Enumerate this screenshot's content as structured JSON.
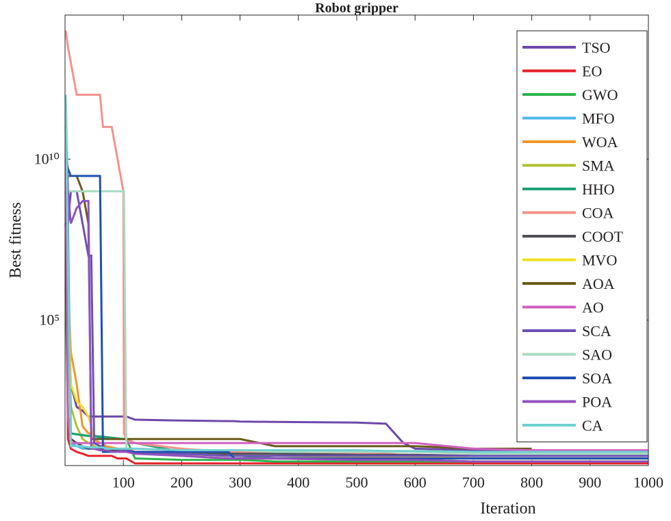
{
  "chart_data": {
    "type": "line",
    "title": "Robot gripper",
    "x_label": "Iteration",
    "y_label": "Best fitness",
    "log_y": true,
    "legend": "upper right",
    "x": [
      1,
      5,
      10,
      20,
      30,
      40,
      45,
      50,
      60,
      65,
      70,
      80,
      90,
      100,
      101,
      105,
      120,
      200,
      280,
      290,
      300,
      360,
      500,
      550,
      580,
      600,
      700,
      800,
      1000
    ],
    "xlim": [
      0,
      1000
    ],
    "xticks": [
      100,
      200,
      300,
      400,
      500,
      600,
      700,
      800,
      900,
      1000
    ],
    "ylim": [
      3,
      300000000000000
    ],
    "yticks": [
      {
        "value": 100000,
        "label": "10⁵"
      },
      {
        "value": 10000000000,
        "label": "10¹⁰"
      }
    ],
    "series": [
      {
        "name": "TSO",
        "color": "#6e48aa",
        "values": [
          1000000000.0,
          1000000.0,
          1000,
          200,
          150,
          100,
          100,
          100,
          100,
          100,
          100,
          100,
          100,
          100,
          100,
          100,
          80,
          75,
          72,
          72,
          70,
          68,
          65,
          60,
          15,
          10,
          9,
          9,
          8
        ]
      },
      {
        "name": "EO",
        "color": "#e8202a",
        "values": [
          100000000.0,
          20,
          10,
          8,
          7,
          6,
          6,
          6,
          6,
          6,
          6,
          6,
          5,
          5,
          5,
          5,
          3.5,
          3.5,
          3.5,
          3.5,
          3.5,
          3.5,
          3.5,
          3.5,
          3.5,
          3.5,
          3.5,
          3.5,
          3.5
        ]
      },
      {
        "name": "GWO",
        "color": "#2db34a",
        "values": [
          1000000.0,
          100,
          30,
          28,
          27,
          25,
          25,
          25,
          22,
          22,
          22,
          21,
          20,
          20,
          20,
          20,
          5,
          4.5,
          4.5,
          4.5,
          4.5,
          4,
          4,
          4,
          4,
          4,
          4,
          4,
          4
        ]
      },
      {
        "name": "MFO",
        "color": "#4db8e8",
        "values": [
          1000000000.0,
          100,
          15,
          12,
          10,
          10,
          10,
          10,
          9,
          9,
          9,
          9,
          8,
          8,
          8,
          8,
          8,
          7,
          6,
          6,
          6,
          6,
          6,
          5.5,
          5.5,
          5.5,
          5,
          5,
          5
        ]
      },
      {
        "name": "WOA",
        "color": "#f0962a",
        "values": [
          1000000000.0,
          1000000.0,
          10000,
          1000,
          50,
          30,
          30,
          20,
          15,
          15,
          12,
          11,
          10,
          10,
          10,
          10,
          8,
          6,
          5,
          5,
          5,
          5,
          4.5,
          4.5,
          4.5,
          4.5,
          4,
          4,
          4
        ]
      },
      {
        "name": "SMA",
        "color": "#b0c030",
        "values": [
          10000000000.0,
          100000,
          200,
          50,
          20,
          15,
          15,
          12,
          10,
          10,
          10,
          9,
          9,
          8,
          8,
          8,
          8,
          7,
          6,
          6,
          6,
          6,
          5.5,
          5.5,
          5.5,
          5.5,
          5,
          5,
          5
        ]
      },
      {
        "name": "HHO",
        "color": "#20a078",
        "values": [
          1000000000000.0,
          100000000.0,
          30,
          28,
          26,
          25,
          25,
          25,
          24,
          24,
          23,
          22,
          21,
          20,
          20,
          20,
          15,
          8,
          6,
          6,
          6,
          5,
          5,
          5,
          4.5,
          4.5,
          4,
          4,
          4
        ]
      },
      {
        "name": "COA",
        "color": "#f4928a",
        "values": [
          100000000000000.0,
          30000000000000.0,
          10000000000000.0,
          1000000000000.0,
          1000000000000.0,
          1000000000000.0,
          1000000000000.0,
          1000000000000.0,
          1000000000000.0,
          100000000000.0,
          100000000000.0,
          100000000000.0,
          10000000000.0,
          1000000000.0,
          30,
          20,
          15,
          10,
          8,
          8,
          8,
          7,
          7,
          7,
          6.5,
          6.5,
          6,
          6,
          6
        ]
      },
      {
        "name": "COOT",
        "color": "#505058",
        "values": [
          100000000.0,
          100,
          20,
          15,
          12,
          10,
          10,
          10,
          10,
          10,
          9,
          9,
          9,
          8,
          8,
          8,
          8,
          7,
          7,
          7,
          7,
          7,
          6.5,
          6.5,
          6.5,
          6.5,
          6,
          6,
          6
        ]
      },
      {
        "name": "MVO",
        "color": "#f0e020",
        "values": [
          1000000000.0,
          1000000.0,
          1000,
          300,
          200,
          100,
          50,
          15,
          12,
          12,
          10,
          10,
          10,
          9,
          9,
          9,
          8,
          7,
          6,
          6,
          6,
          6,
          5.5,
          5.5,
          5.5,
          5.5,
          5,
          5,
          5
        ]
      },
      {
        "name": "AOA",
        "color": "#6a5a1a",
        "values": [
          1000000000.0,
          3000000000.0,
          3000000000.0,
          3000000000.0,
          1000000000.0,
          100000000.0,
          20,
          20,
          20,
          20,
          20,
          20,
          20,
          20,
          20,
          20,
          20,
          20,
          20,
          20,
          20,
          12,
          12,
          12,
          12,
          12,
          10,
          10,
          null
        ]
      },
      {
        "name": "AO",
        "color": "#d060c0",
        "values": [
          100000000000.0,
          100,
          15,
          15,
          15,
          15,
          15,
          15,
          15,
          15,
          15,
          15,
          15,
          15,
          15,
          15,
          15,
          15,
          15,
          15,
          15,
          15,
          15,
          15,
          15,
          15,
          10,
          9,
          9
        ]
      },
      {
        "name": "SCA",
        "color": "#6a50b8",
        "values": [
          100000000.0,
          100000000.0,
          1000000000.0,
          1000000000.0,
          100000000.0,
          10000000.0,
          10000000.0,
          15,
          12,
          12,
          10,
          10,
          10,
          9,
          9,
          9,
          8,
          7,
          6,
          6,
          6,
          6,
          6,
          6,
          6,
          6,
          6,
          6,
          6
        ]
      },
      {
        "name": "SAO",
        "color": "#a8dcc0",
        "values": [
          1000000000000.0,
          1000000000.0,
          1000000000.0,
          1000000000.0,
          1000000000.0,
          1000000000.0,
          1000000000.0,
          1000000000.0,
          1000000000.0,
          1000000000.0,
          1000000000.0,
          1000000000.0,
          1000000000.0,
          1000000000.0,
          1000000000.0,
          10,
          10,
          9,
          9,
          9,
          9,
          8,
          8,
          8,
          8,
          8,
          7,
          7,
          7
        ]
      },
      {
        "name": "SOA",
        "color": "#1e50b0",
        "values": [
          10000000000.0,
          5000000000.0,
          3000000000.0,
          3000000000.0,
          3000000000.0,
          3000000000.0,
          3000000000.0,
          3000000000.0,
          3000000000.0,
          8,
          8,
          8,
          8,
          8,
          8,
          8,
          8,
          8,
          8,
          5,
          5,
          5,
          5,
          5,
          5,
          5,
          5,
          5,
          5
        ]
      },
      {
        "name": "POA",
        "color": "#9050c0",
        "values": [
          100000000000.0,
          1000000000.0,
          100000000.0,
          300000000.0,
          500000000.0,
          500000000.0,
          10,
          10,
          9,
          9,
          9,
          8,
          8,
          8,
          8,
          8,
          7,
          6,
          5,
          5,
          5,
          5,
          4.5,
          4.5,
          4.5,
          4.5,
          4,
          4,
          4
        ]
      },
      {
        "name": "CA",
        "color": "#70d0d0",
        "values": [
          1000000000000.0,
          10000000.0,
          12,
          12,
          12,
          11,
          11,
          11,
          11,
          11,
          10,
          10,
          10,
          10,
          10,
          10,
          10,
          9,
          9,
          9,
          9,
          9,
          9,
          8.5,
          8.5,
          8.5,
          8,
          8,
          8
        ]
      }
    ]
  }
}
